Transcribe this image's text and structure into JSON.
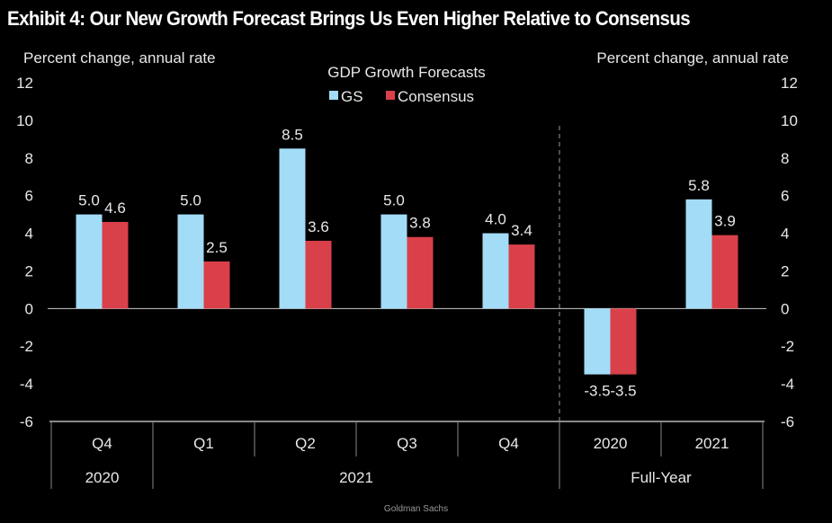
{
  "title": "Exhibit 4: Our New Growth Forecast Brings Us Even Higher Relative to Consensus",
  "footer": "Goldman Sachs",
  "chart_data": {
    "type": "bar",
    "title": "GDP Growth Forecasts",
    "ylabel_left": "Percent change, annual rate",
    "ylabel_right": "Percent change, annual rate",
    "ylim": [
      -6,
      12
    ],
    "yticks": [
      -6,
      -4,
      -2,
      0,
      2,
      4,
      6,
      8,
      10,
      12
    ],
    "categories": [
      "Q4",
      "Q1",
      "Q2",
      "Q3",
      "Q4",
      "2020",
      "2021"
    ],
    "category_groups": [
      {
        "label": "2020",
        "span": 1
      },
      {
        "label": "2021",
        "span": 4
      },
      {
        "label": "Full-Year",
        "span": 2
      }
    ],
    "series": [
      {
        "name": "GS",
        "color": "#a3dcf7",
        "values": [
          5.0,
          5.0,
          8.5,
          5.0,
          4.0,
          -3.5,
          5.8
        ]
      },
      {
        "name": "Consensus",
        "color": "#d9404a",
        "values": [
          4.6,
          2.5,
          3.6,
          3.8,
          3.4,
          -3.5,
          3.9
        ]
      }
    ],
    "legend": "top-center",
    "separator_before_category": 5
  }
}
